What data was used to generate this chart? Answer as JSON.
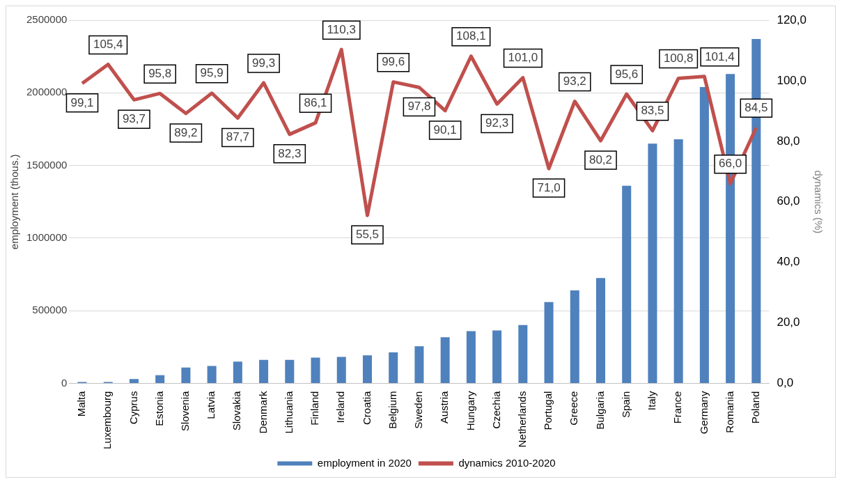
{
  "chart_data": {
    "type": "bar",
    "xlabel": null,
    "ylabel": "employment (thous.)",
    "y2label": "dynamics (%)",
    "categories": [
      "Malta",
      "Luxembourg",
      "Cyprus",
      "Estonia",
      "Slovenia",
      "Latvia",
      "Slovakia",
      "Denmark",
      "Lithuania",
      "Finland",
      "Ireland",
      "Croatia",
      "Belgium",
      "Sweden",
      "Austria",
      "Hungary",
      "Czechia",
      "Netherlands",
      "Portugal",
      "Greece",
      "Bulgaria",
      "Spain",
      "Italy",
      "France",
      "Germany",
      "Romania",
      "Poland"
    ],
    "series": [
      {
        "name": "employment in 2020",
        "color": "#4f81bd",
        "values": [
          10000,
          10000,
          30000,
          57000,
          110000,
          120000,
          150000,
          162000,
          162000,
          178000,
          183000,
          193000,
          214000,
          256000,
          318000,
          360000,
          365000,
          402000,
          560000,
          640000,
          725000,
          1360000,
          1650000,
          1680000,
          2040000,
          2130000,
          2370000
        ]
      },
      {
        "name": "dynamics 2010-2020",
        "type": "line",
        "axis": "y2",
        "color": "#c0504d",
        "values": [
          99.1,
          105.4,
          93.7,
          95.8,
          89.2,
          95.9,
          87.7,
          99.3,
          82.3,
          86.1,
          110.3,
          55.5,
          99.6,
          97.8,
          90.1,
          108.1,
          92.3,
          101.0,
          71.0,
          93.2,
          80.2,
          95.6,
          83.5,
          100.8,
          101.4,
          66.0,
          84.5
        ],
        "value_labels": [
          "99,1",
          "105,4",
          "93,7",
          "95,8",
          "89,2",
          "95,9",
          "87,7",
          "99,3",
          "82,3",
          "86,1",
          "110,3",
          "55,5",
          "99,6",
          "97,8",
          "90,1",
          "108,1",
          "92,3",
          "101,0",
          "71,0",
          "93,2",
          "80,2",
          "95,6",
          "83,5",
          "100,8",
          "101,4",
          "66,0",
          "84,5"
        ]
      }
    ],
    "ylim": [
      0,
      2500000
    ],
    "yticks": [
      0,
      500000,
      1000000,
      1500000,
      2000000,
      2500000
    ],
    "y2lim": [
      0,
      120
    ],
    "y2ticks": [
      {
        "value": 0,
        "label": "0,0"
      },
      {
        "value": 20,
        "label": "20,0"
      },
      {
        "value": 40,
        "label": "40,0"
      },
      {
        "value": 60,
        "label": "60,0"
      },
      {
        "value": 80,
        "label": "80,0"
      },
      {
        "value": 100,
        "label": "100,0"
      },
      {
        "value": 120,
        "label": "120,0"
      }
    ],
    "grid": "y",
    "legend": "bottom",
    "marker": "none",
    "line_style": "solid"
  }
}
